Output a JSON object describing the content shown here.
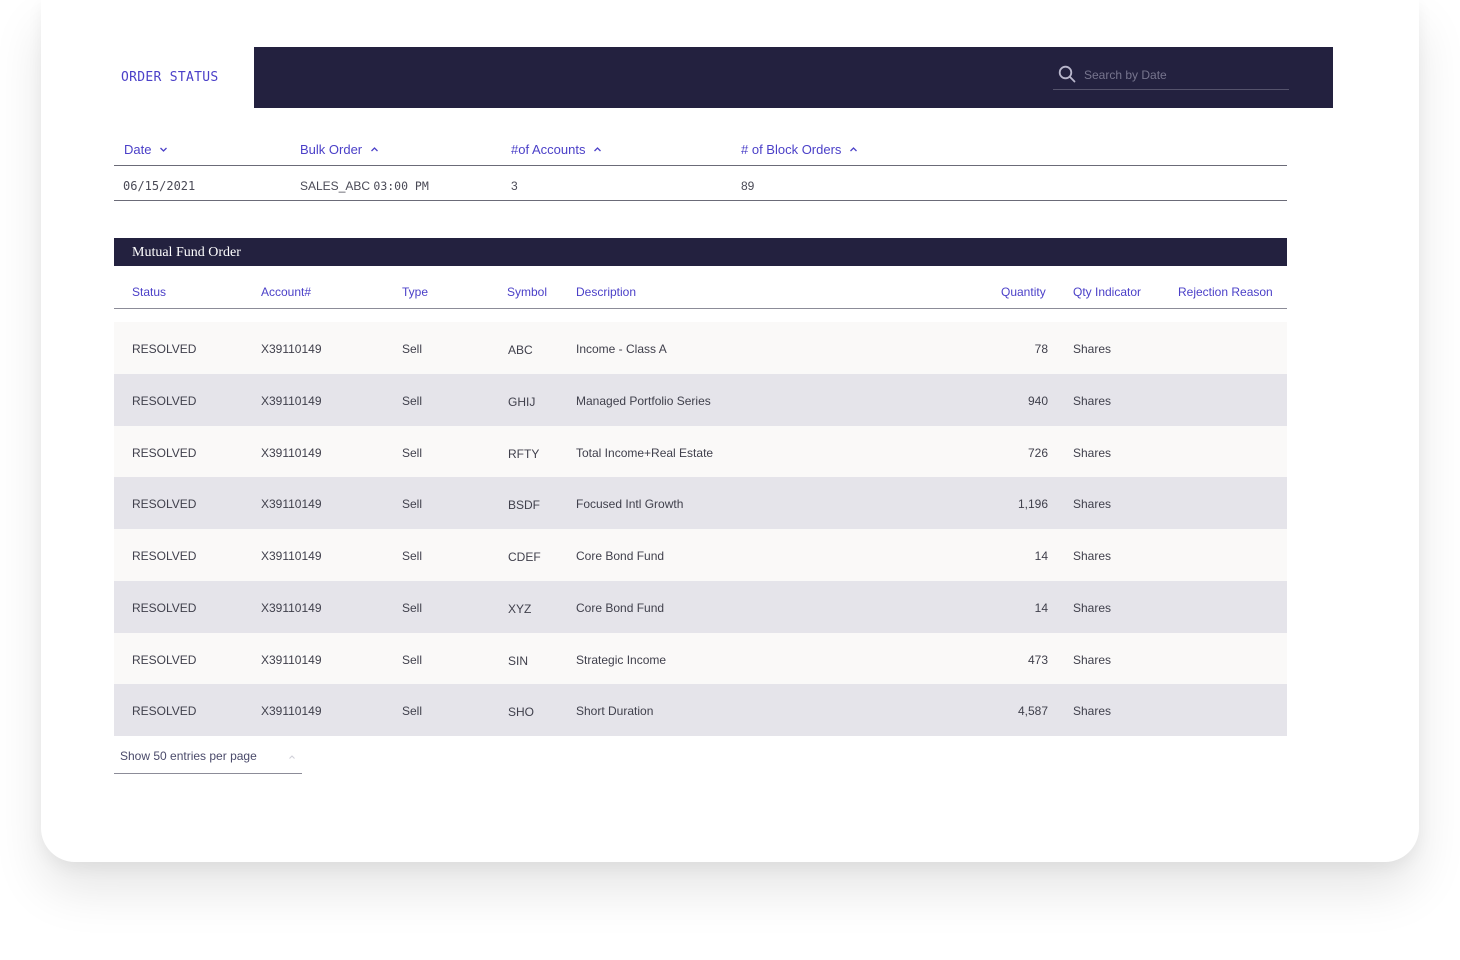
{
  "app": {
    "tab_title": "ORDER STATUS",
    "search": {
      "placeholder": "Search by Date",
      "value": ""
    }
  },
  "summary": {
    "headers": {
      "date": "Date",
      "bulk_order": "Bulk Order",
      "accounts": "#of Accounts",
      "block_orders": "# of Block Orders"
    },
    "row": {
      "date": "06/15/2021",
      "bulk_order_name": "SALES_ABC",
      "bulk_order_time": "03:00 PM",
      "accounts": "3",
      "block_orders": "89"
    }
  },
  "mutual_fund": {
    "title": "Mutual Fund Order",
    "headers": {
      "status": "Status",
      "account": "Account#",
      "type": "Type",
      "symbol": "Symbol",
      "description": "Description",
      "quantity": "Quantity",
      "qty_indicator": "Qty Indicator",
      "rejection_reason": "Rejection Reason"
    },
    "rows": [
      {
        "status": "RESOLVED",
        "account": "X39110149",
        "type": "Sell",
        "symbol": "ABC",
        "description": "Income - Class A",
        "quantity": "78",
        "qty_indicator": "Shares",
        "rejection_reason": ""
      },
      {
        "status": "RESOLVED",
        "account": "X39110149",
        "type": "Sell",
        "symbol": "GHIJ",
        "description": "Managed Portfolio Series",
        "quantity": "940",
        "qty_indicator": "Shares",
        "rejection_reason": ""
      },
      {
        "status": "RESOLVED",
        "account": "X39110149",
        "type": "Sell",
        "symbol": "RFTY",
        "description": "Total Income+Real Estate",
        "quantity": "726",
        "qty_indicator": "Shares",
        "rejection_reason": ""
      },
      {
        "status": "RESOLVED",
        "account": "X39110149",
        "type": "Sell",
        "symbol": "BSDF",
        "description": "Focused Intl Growth",
        "quantity": "1,196",
        "qty_indicator": "Shares",
        "rejection_reason": ""
      },
      {
        "status": "RESOLVED",
        "account": "X39110149",
        "type": "Sell",
        "symbol": "CDEF",
        "description": "Core Bond Fund",
        "quantity": "14",
        "qty_indicator": "Shares",
        "rejection_reason": ""
      },
      {
        "status": "RESOLVED",
        "account": "X39110149",
        "type": "Sell",
        "symbol": "XYZ",
        "description": "Core Bond Fund",
        "quantity": "14",
        "qty_indicator": "Shares",
        "rejection_reason": ""
      },
      {
        "status": "RESOLVED",
        "account": "X39110149",
        "type": "Sell",
        "symbol": "SIN",
        "description": "Strategic Income",
        "quantity": "473",
        "qty_indicator": "Shares",
        "rejection_reason": ""
      },
      {
        "status": "RESOLVED",
        "account": "X39110149",
        "type": "Sell",
        "symbol": "SHO",
        "description": "Short Duration",
        "quantity": "4,587",
        "qty_indicator": "Shares",
        "rejection_reason": ""
      }
    ]
  },
  "pagination": {
    "entries_label": "Show 50 entries per page"
  }
}
